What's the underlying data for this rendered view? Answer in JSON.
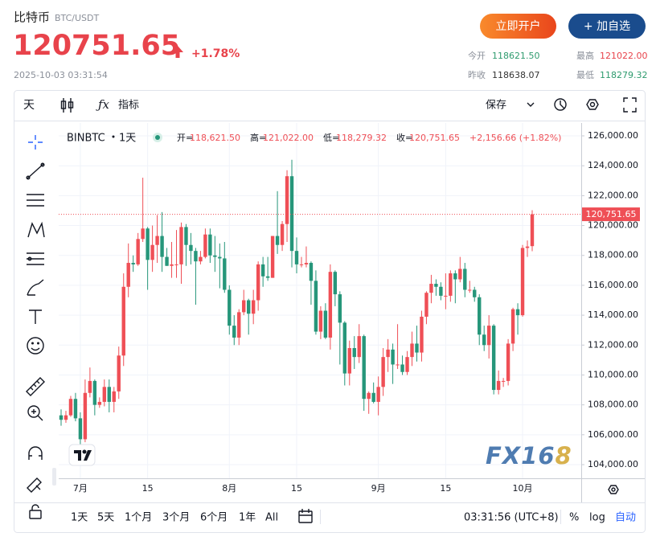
{
  "header": {
    "name": "比特币",
    "pair": "BTC/USDT",
    "price": "120751.65",
    "change_pct": "+1.78%",
    "time": "2025-10-03 03:31:54",
    "open_account": "立即开户",
    "add_watch": "+ 加自选",
    "stats": [
      {
        "label": "今开",
        "value": "118621.50"
      },
      {
        "label": "最高",
        "value": "121022.00"
      },
      {
        "label": "昨收",
        "value": "118638.07"
      },
      {
        "label": "最低",
        "value": "118279.32"
      }
    ]
  },
  "toolbar": {
    "interval": "天",
    "indicators": "指标",
    "save": "保存"
  },
  "bottom_bar": {
    "ranges": [
      "1天",
      "5天",
      "1个月",
      "3个月",
      "6个月",
      "1年",
      "All"
    ],
    "clock": "03:31:56 (UTC+8)",
    "percent": "%",
    "log": "log",
    "auto": "自动"
  },
  "watermark": "FX168",
  "chart_data": {
    "type": "candlestick",
    "symbol": "BINBTC",
    "interval": "1天",
    "legend": [
      {
        "label": "开=",
        "value": "118,621.50"
      },
      {
        "label": "高=",
        "value": "121,022.00"
      },
      {
        "label": "低=",
        "value": "118,279.32"
      },
      {
        "label": "收=",
        "value": "120,751.65"
      }
    ],
    "change": "+2,156.66 (+1.82%)",
    "last_value_label": "120,751.65",
    "up_color": "#ef4f56",
    "down_color": "#26967a",
    "categories": [
      null,
      null,
      null,
      null,
      "7月",
      null,
      null,
      null,
      null,
      null,
      null,
      null,
      null,
      null,
      null,
      null,
      null,
      null,
      "15",
      null,
      null,
      null,
      null,
      null,
      null,
      null,
      null,
      null,
      null,
      null,
      null,
      null,
      null,
      null,
      null,
      "8月",
      null,
      null,
      null,
      null,
      null,
      null,
      null,
      null,
      null,
      null,
      null,
      null,
      null,
      "15",
      null,
      null,
      null,
      null,
      null,
      null,
      null,
      null,
      null,
      null,
      null,
      null,
      null,
      null,
      null,
      null,
      "9月",
      null,
      null,
      null,
      null,
      null,
      null,
      null,
      null,
      null,
      null,
      null,
      null,
      null,
      "15",
      null,
      null,
      null,
      null,
      null,
      null,
      null,
      null,
      null,
      null,
      null,
      null,
      null,
      null,
      null,
      "10月",
      null,
      null
    ],
    "open": [
      107300,
      107000,
      107300,
      108400,
      107100,
      105700,
      108800,
      109600,
      108000,
      108200,
      109200,
      108200,
      108900,
      111300,
      115900,
      117500,
      117400,
      119100,
      119800,
      117700,
      118700,
      119300,
      117900,
      117300,
      117400,
      117400,
      119900,
      118700,
      118300,
      117600,
      117900,
      119400,
      118000,
      117900,
      117800,
      115700,
      113300,
      112500,
      114200,
      115000,
      114100,
      115000,
      117400,
      116600,
      116500,
      119300,
      118700,
      120100,
      123300,
      118300,
      117400,
      117400,
      117500,
      116300,
      112900,
      114300,
      112500,
      116900,
      115400,
      113500,
      110100,
      111800,
      111200,
      112600,
      108400,
      108800,
      108200,
      109200,
      111200,
      111700,
      110700,
      110700,
      110200,
      111200,
      112100,
      111500,
      113900,
      115500,
      116100,
      115900,
      115300,
      115300,
      116800,
      116400,
      117100,
      115700,
      115700,
      115200,
      112700,
      112000,
      113300,
      109000,
      109600,
      109600,
      112100,
      114400,
      114000,
      118500,
      118621.5
    ],
    "high": [
      107700,
      107600,
      108600,
      108800,
      107500,
      109700,
      110500,
      109700,
      108500,
      109700,
      109700,
      109200,
      111900,
      116800,
      118800,
      118000,
      119500,
      123200,
      119900,
      120000,
      120700,
      120900,
      118500,
      118900,
      119700,
      120200,
      120100,
      119500,
      118500,
      118300,
      119800,
      119800,
      119300,
      118800,
      118900,
      116000,
      114000,
      114400,
      115700,
      115100,
      115700,
      117600,
      117900,
      117900,
      119300,
      122300,
      120300,
      123700,
      124400,
      119200,
      117900,
      118600,
      117600,
      117000,
      114600,
      114800,
      117400,
      117000,
      115600,
      113600,
      112300,
      112600,
      113400,
      112700,
      108900,
      109500,
      109900,
      111800,
      112400,
      112100,
      113400,
      111300,
      111600,
      112900,
      113300,
      114300,
      115600,
      116700,
      116400,
      116200,
      116800,
      117000,
      117000,
      117900,
      117500,
      116300,
      115900,
      115400,
      113300,
      114000,
      113400,
      110300,
      109800,
      112400,
      114500,
      114800,
      118700,
      119000,
      121022
    ],
    "low": [
      106600,
      106800,
      107200,
      106900,
      105300,
      105500,
      108500,
      107300,
      107800,
      107900,
      107500,
      107500,
      108400,
      110600,
      115200,
      116900,
      117300,
      118900,
      115700,
      116900,
      117500,
      116900,
      117300,
      116500,
      116500,
      116100,
      117300,
      117400,
      114700,
      117400,
      117800,
      117500,
      116900,
      115800,
      115500,
      112700,
      112000,
      112000,
      114000,
      112700,
      113400,
      114300,
      115900,
      116300,
      116500,
      118100,
      118300,
      118900,
      117200,
      116800,
      117200,
      117200,
      114700,
      112700,
      112400,
      112400,
      111700,
      114600,
      110700,
      109300,
      109300,
      110400,
      110800,
      107600,
      107400,
      108100,
      107300,
      108600,
      110200,
      109400,
      110400,
      110000,
      110000,
      110600,
      110900,
      110900,
      113400,
      114800,
      115300,
      115000,
      114400,
      114900,
      114800,
      116200,
      115200,
      115500,
      114900,
      112000,
      111600,
      111100,
      108700,
      108700,
      109200,
      109300,
      111600,
      112700,
      113900,
      117900,
      118279.32
    ],
    "close": [
      107000,
      107300,
      108400,
      107100,
      105700,
      108800,
      109600,
      108000,
      108200,
      109200,
      108200,
      108900,
      111300,
      115900,
      117500,
      117400,
      119100,
      119800,
      117700,
      118700,
      119300,
      117900,
      117300,
      117400,
      117400,
      119900,
      118700,
      118300,
      117600,
      117900,
      119400,
      118000,
      117900,
      117800,
      115700,
      113300,
      112500,
      114200,
      115000,
      114100,
      115000,
      117400,
      116600,
      116500,
      119300,
      118700,
      120100,
      123300,
      118300,
      117400,
      117400,
      117500,
      116300,
      112900,
      114300,
      112500,
      116900,
      115400,
      113500,
      110100,
      111800,
      111200,
      112600,
      108400,
      108800,
      108200,
      109200,
      111200,
      111700,
      110700,
      110700,
      110200,
      111200,
      112100,
      111500,
      113900,
      115500,
      116100,
      115900,
      115300,
      115300,
      116800,
      116400,
      117100,
      115700,
      115700,
      115200,
      112700,
      112000,
      113300,
      109000,
      109600,
      109600,
      112100,
      114400,
      114000,
      118500,
      118595,
      120751.65
    ],
    "ylim": [
      103086,
      126861
    ],
    "yticks": [
      {
        "value": 104000,
        "label": "104,000.00"
      },
      {
        "value": 106000,
        "label": "106,000.00"
      },
      {
        "value": 108000,
        "label": "108,000.00"
      },
      {
        "value": 110000,
        "label": "110,000.00"
      },
      {
        "value": 112000,
        "label": "112,000.00"
      },
      {
        "value": 114000,
        "label": "114,000.00"
      },
      {
        "value": 116000,
        "label": "116,000.00"
      },
      {
        "value": 118000,
        "label": "118,000.00"
      },
      {
        "value": 120000,
        "label": "120,000.00"
      },
      {
        "value": 122000,
        "label": "122,000.00"
      },
      {
        "value": 124000,
        "label": "124,000.00"
      },
      {
        "value": 126000,
        "label": "126,000.00"
      }
    ],
    "grid": true
  }
}
